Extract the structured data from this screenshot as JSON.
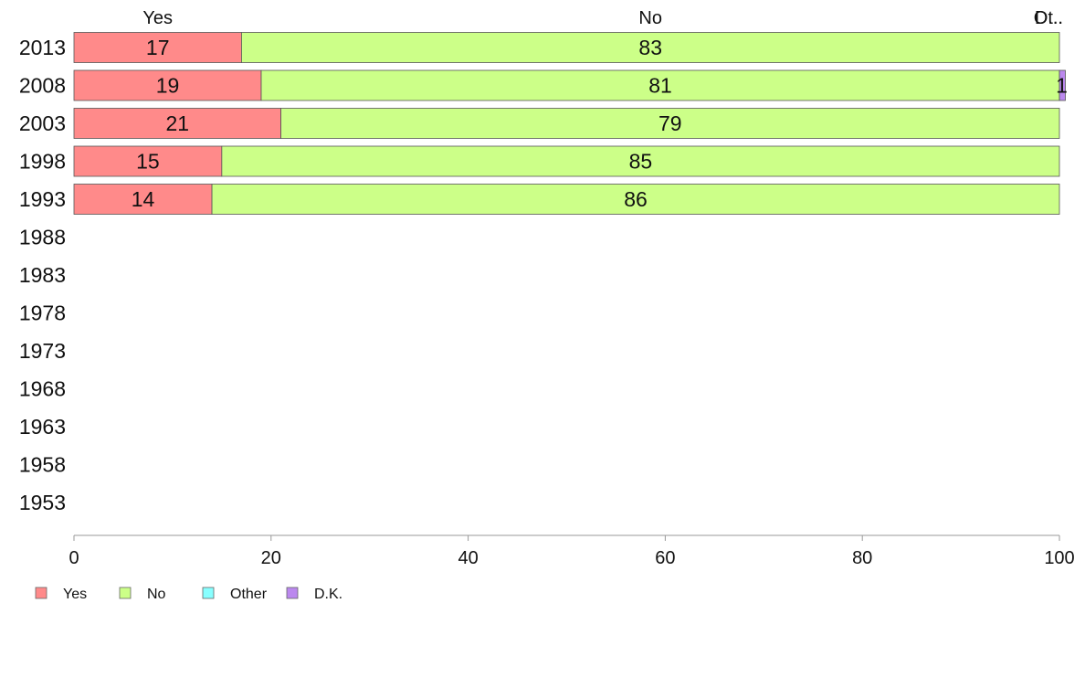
{
  "chart_data": {
    "type": "bar",
    "orientation": "horizontal",
    "stacked": true,
    "title": "",
    "xlabel": "",
    "ylabel": "",
    "xlim": [
      0,
      100
    ],
    "x_ticks": [
      0,
      20,
      40,
      60,
      80,
      100
    ],
    "categories": [
      "2013",
      "2008",
      "2003",
      "1998",
      "1993",
      "1988",
      "1983",
      "1978",
      "1973",
      "1968",
      "1963",
      "1958",
      "1953"
    ],
    "series": [
      {
        "name": "Yes",
        "color": "#ff8a8a",
        "values": [
          17,
          19,
          21,
          15,
          14,
          null,
          null,
          null,
          null,
          null,
          null,
          null,
          null
        ]
      },
      {
        "name": "No",
        "color": "#ccff88",
        "values": [
          83,
          81,
          79,
          85,
          86,
          null,
          null,
          null,
          null,
          null,
          null,
          null,
          null
        ]
      },
      {
        "name": "Other",
        "color": "#88ffff",
        "values": [
          0,
          0,
          0,
          0,
          0,
          null,
          null,
          null,
          null,
          null,
          null,
          null,
          null
        ]
      },
      {
        "name": "D.K.",
        "color": "#bb88ee",
        "values": [
          0,
          0.6,
          0,
          0,
          0,
          null,
          null,
          null,
          null,
          null,
          null,
          null,
          null
        ]
      }
    ],
    "data_labels": [
      [
        "17",
        "83",
        "",
        ""
      ],
      [
        "19",
        "81",
        "",
        "1"
      ],
      [
        "21",
        "79",
        "",
        ""
      ],
      [
        "15",
        "85",
        "",
        ""
      ],
      [
        "14",
        "86",
        "",
        ""
      ]
    ],
    "top_labels": [
      "Yes",
      "No",
      "Ot..",
      "D..."
    ],
    "legend": {
      "position": "bottom-left",
      "entries": [
        "Yes",
        "No",
        "Other",
        "D.K."
      ]
    },
    "grid": false
  }
}
